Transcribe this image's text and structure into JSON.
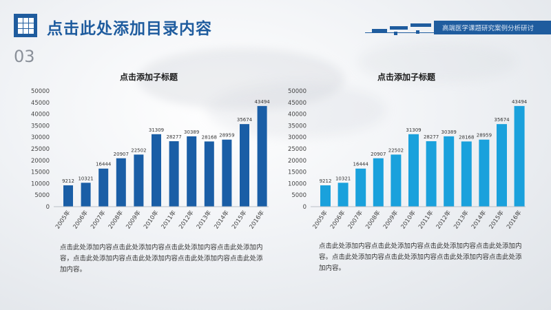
{
  "header": {
    "title": "点击此处添加目录内容",
    "page_number": "03",
    "band_text": "高端医学课题研究案例分析研讨"
  },
  "colors": {
    "brand": "#1f5c9e",
    "left_bars": "#1a5ea6",
    "right_bars": "#1aa1dc"
  },
  "icons": {
    "logo": "grid-icon"
  },
  "chart_data": [
    {
      "type": "bar",
      "title": "点击添加子标题",
      "categories": [
        "2005年",
        "2006年",
        "2007年",
        "2008年",
        "2009年",
        "2010年",
        "2011年",
        "2012年",
        "2013年",
        "2014年",
        "2015年",
        "2016年"
      ],
      "values": [
        9212,
        10321,
        16444,
        20907,
        22502,
        31309,
        28277,
        30389,
        28168,
        28959,
        35674,
        43494
      ],
      "value_labels": [
        "9212",
        "10321",
        "16444",
        "20907",
        "22502",
        "31309",
        "28277",
        "30389",
        "28168",
        "28959",
        "35674",
        "43494"
      ],
      "ylim": [
        0,
        50000
      ],
      "yticks": [
        0,
        5000,
        10000,
        15000,
        20000,
        25000,
        30000,
        35000,
        40000,
        45000,
        50000
      ],
      "ytick_labels": [
        "0",
        "5000",
        "10000",
        "15000",
        "20000",
        "25000",
        "30000",
        "35000",
        "40000",
        "45000",
        "50000"
      ],
      "grid": false,
      "legend": "none",
      "color": "#1a5ea6"
    },
    {
      "type": "bar",
      "title": "点击添加子标题",
      "categories": [
        "2005年",
        "2006年",
        "2007年",
        "2008年",
        "2009年",
        "2010年",
        "2011年",
        "2012年",
        "2013年",
        "2014年",
        "2015年",
        "2016年"
      ],
      "values": [
        9212,
        10321,
        16444,
        20907,
        22502,
        31309,
        28277,
        30389,
        28168,
        28959,
        35674,
        43494
      ],
      "value_labels": [
        "9212",
        "10321",
        "16444",
        "20907",
        "22502",
        "31309",
        "28277",
        "30389",
        "28168",
        "28959",
        "35674",
        "43494"
      ],
      "ylim": [
        0,
        50000
      ],
      "yticks": [
        0,
        5000,
        10000,
        15000,
        20000,
        25000,
        30000,
        35000,
        40000,
        45000,
        50000
      ],
      "ytick_labels": [
        "0",
        "5000",
        "10000",
        "15000",
        "20000",
        "25000",
        "30000",
        "35000",
        "40000",
        "45000",
        "50000"
      ],
      "grid": false,
      "legend": "none",
      "color": "#1aa1dc"
    }
  ],
  "captions": {
    "left": "点击此处添加内容点击此处添加内容点击此处添加内容点击此处添加内容，点击此处添加内容点击此处添加内容点击此处添加内容点击此处添加内容。",
    "right": "点击此处添加内容点击此处添加内容点击此处添加内容点击此处添加内容。点击此处添加内容点击此处添加内容点击此处添加内容点击此处添加内容。"
  }
}
